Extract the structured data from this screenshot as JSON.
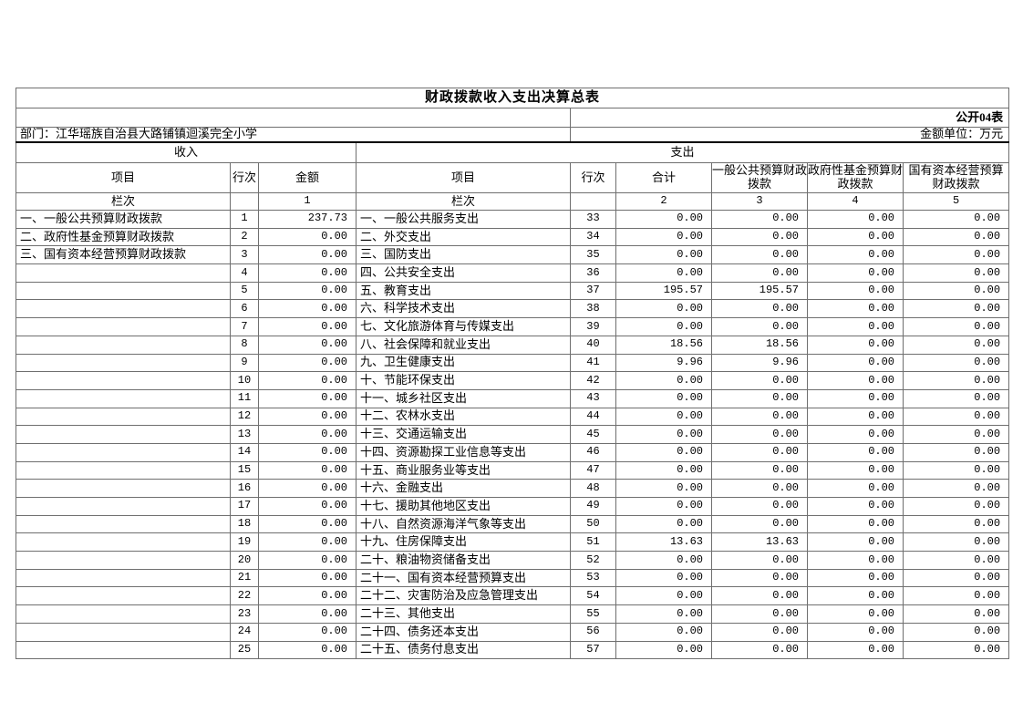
{
  "document": {
    "title": "财政拨款收入支出决算总表",
    "table_code": "公开04表",
    "department_label": "部门：江华瑶族自治县大路铺镇迴溪完全小学",
    "unit_label": "金额单位：万元"
  },
  "table": {
    "income_section_label": "收入",
    "expense_section_label": "支出",
    "income_headers": {
      "item": "项目",
      "line_no": "行次",
      "amount": "金额"
    },
    "expense_headers": {
      "item": "项目",
      "line_no": "行次",
      "total": "合计",
      "general_budget": "一般公共预算财政拨款",
      "gov_fund": "政府性基金预算财政拨款",
      "state_capital": "国有资本经营预算财政拨款"
    },
    "column_index_label": "栏次",
    "income_column_numbers": {
      "amount": "1"
    },
    "expense_column_numbers": {
      "total": "2",
      "general_budget": "3",
      "gov_fund": "4",
      "state_capital": "5"
    },
    "income_rows": [
      {
        "item": "一、一般公共预算财政拨款",
        "line": "1",
        "amount": "237.73"
      },
      {
        "item": "二、政府性基金预算财政拨款",
        "line": "2",
        "amount": "0.00"
      },
      {
        "item": "三、国有资本经营预算财政拨款",
        "line": "3",
        "amount": "0.00"
      },
      {
        "item": "",
        "line": "4",
        "amount": "0.00"
      },
      {
        "item": "",
        "line": "5",
        "amount": "0.00"
      },
      {
        "item": "",
        "line": "6",
        "amount": "0.00"
      },
      {
        "item": "",
        "line": "7",
        "amount": "0.00"
      },
      {
        "item": "",
        "line": "8",
        "amount": "0.00"
      },
      {
        "item": "",
        "line": "9",
        "amount": "0.00"
      },
      {
        "item": "",
        "line": "10",
        "amount": "0.00"
      },
      {
        "item": "",
        "line": "11",
        "amount": "0.00"
      },
      {
        "item": "",
        "line": "12",
        "amount": "0.00"
      },
      {
        "item": "",
        "line": "13",
        "amount": "0.00"
      },
      {
        "item": "",
        "line": "14",
        "amount": "0.00"
      },
      {
        "item": "",
        "line": "15",
        "amount": "0.00"
      },
      {
        "item": "",
        "line": "16",
        "amount": "0.00"
      },
      {
        "item": "",
        "line": "17",
        "amount": "0.00"
      },
      {
        "item": "",
        "line": "18",
        "amount": "0.00"
      },
      {
        "item": "",
        "line": "19",
        "amount": "0.00"
      },
      {
        "item": "",
        "line": "20",
        "amount": "0.00"
      },
      {
        "item": "",
        "line": "21",
        "amount": "0.00"
      },
      {
        "item": "",
        "line": "22",
        "amount": "0.00"
      },
      {
        "item": "",
        "line": "23",
        "amount": "0.00"
      },
      {
        "item": "",
        "line": "24",
        "amount": "0.00"
      },
      {
        "item": "",
        "line": "25",
        "amount": "0.00"
      }
    ],
    "expense_rows": [
      {
        "item": "一、一般公共服务支出",
        "line": "33",
        "total": "0.00",
        "general": "0.00",
        "fund": "0.00",
        "capital": "0.00"
      },
      {
        "item": "二、外交支出",
        "line": "34",
        "total": "0.00",
        "general": "0.00",
        "fund": "0.00",
        "capital": "0.00"
      },
      {
        "item": "三、国防支出",
        "line": "35",
        "total": "0.00",
        "general": "0.00",
        "fund": "0.00",
        "capital": "0.00"
      },
      {
        "item": "四、公共安全支出",
        "line": "36",
        "total": "0.00",
        "general": "0.00",
        "fund": "0.00",
        "capital": "0.00"
      },
      {
        "item": "五、教育支出",
        "line": "37",
        "total": "195.57",
        "general": "195.57",
        "fund": "0.00",
        "capital": "0.00"
      },
      {
        "item": "六、科学技术支出",
        "line": "38",
        "total": "0.00",
        "general": "0.00",
        "fund": "0.00",
        "capital": "0.00"
      },
      {
        "item": "七、文化旅游体育与传媒支出",
        "line": "39",
        "total": "0.00",
        "general": "0.00",
        "fund": "0.00",
        "capital": "0.00"
      },
      {
        "item": "八、社会保障和就业支出",
        "line": "40",
        "total": "18.56",
        "general": "18.56",
        "fund": "0.00",
        "capital": "0.00"
      },
      {
        "item": "九、卫生健康支出",
        "line": "41",
        "total": "9.96",
        "general": "9.96",
        "fund": "0.00",
        "capital": "0.00"
      },
      {
        "item": "十、节能环保支出",
        "line": "42",
        "total": "0.00",
        "general": "0.00",
        "fund": "0.00",
        "capital": "0.00"
      },
      {
        "item": "十一、城乡社区支出",
        "line": "43",
        "total": "0.00",
        "general": "0.00",
        "fund": "0.00",
        "capital": "0.00"
      },
      {
        "item": "十二、农林水支出",
        "line": "44",
        "total": "0.00",
        "general": "0.00",
        "fund": "0.00",
        "capital": "0.00"
      },
      {
        "item": "十三、交通运输支出",
        "line": "45",
        "total": "0.00",
        "general": "0.00",
        "fund": "0.00",
        "capital": "0.00"
      },
      {
        "item": "十四、资源勘探工业信息等支出",
        "line": "46",
        "total": "0.00",
        "general": "0.00",
        "fund": "0.00",
        "capital": "0.00"
      },
      {
        "item": "十五、商业服务业等支出",
        "line": "47",
        "total": "0.00",
        "general": "0.00",
        "fund": "0.00",
        "capital": "0.00"
      },
      {
        "item": "十六、金融支出",
        "line": "48",
        "total": "0.00",
        "general": "0.00",
        "fund": "0.00",
        "capital": "0.00"
      },
      {
        "item": "十七、援助其他地区支出",
        "line": "49",
        "total": "0.00",
        "general": "0.00",
        "fund": "0.00",
        "capital": "0.00"
      },
      {
        "item": "十八、自然资源海洋气象等支出",
        "line": "50",
        "total": "0.00",
        "general": "0.00",
        "fund": "0.00",
        "capital": "0.00"
      },
      {
        "item": "十九、住房保障支出",
        "line": "51",
        "total": "13.63",
        "general": "13.63",
        "fund": "0.00",
        "capital": "0.00"
      },
      {
        "item": "二十、粮油物资储备支出",
        "line": "52",
        "total": "0.00",
        "general": "0.00",
        "fund": "0.00",
        "capital": "0.00"
      },
      {
        "item": "二十一、国有资本经营预算支出",
        "line": "53",
        "total": "0.00",
        "general": "0.00",
        "fund": "0.00",
        "capital": "0.00"
      },
      {
        "item": "二十二、灾害防治及应急管理支出",
        "line": "54",
        "total": "0.00",
        "general": "0.00",
        "fund": "0.00",
        "capital": "0.00"
      },
      {
        "item": "二十三、其他支出",
        "line": "55",
        "total": "0.00",
        "general": "0.00",
        "fund": "0.00",
        "capital": "0.00"
      },
      {
        "item": "二十四、债务还本支出",
        "line": "56",
        "total": "0.00",
        "general": "0.00",
        "fund": "0.00",
        "capital": "0.00"
      },
      {
        "item": "二十五、债务付息支出",
        "line": "57",
        "total": "0.00",
        "general": "0.00",
        "fund": "0.00",
        "capital": "0.00"
      }
    ]
  }
}
